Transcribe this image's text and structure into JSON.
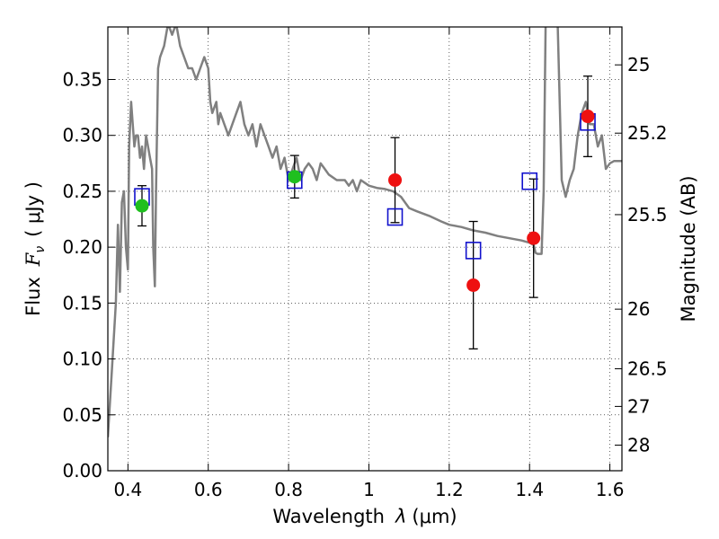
{
  "chart_data": {
    "type": "scatter",
    "xlabel_text": "Wavelength",
    "xlabel_symbol": "λ",
    "xlabel_unit": "(μm)",
    "ylabel_text": "Flux",
    "ylabel_symbol": "F",
    "ylabel_symbol_sub": "ν",
    "ylabel_unit": "( μJy )",
    "y2label": "Magnitude (AB)",
    "xlim": [
      0.35,
      1.63
    ],
    "ylim": [
      0.0,
      0.397
    ],
    "x_ticks": [
      0.4,
      0.6,
      0.8,
      1.0,
      1.2,
      1.4,
      1.6
    ],
    "x_tick_labels": [
      "0.4",
      "0.6",
      "0.8",
      "1",
      "1.2",
      "1.4",
      "1.6"
    ],
    "y_ticks": [
      0.0,
      0.05,
      0.1,
      0.15,
      0.2,
      0.25,
      0.3,
      0.35
    ],
    "y_tick_labels": [
      "0.00",
      "0.05",
      "0.10",
      "0.15",
      "0.20",
      "0.25",
      "0.30",
      "0.35"
    ],
    "y2_ticks": [
      {
        "mag": 25,
        "label": "25"
      },
      {
        "mag": 25.2,
        "label": "25.2"
      },
      {
        "mag": 25.5,
        "label": "25.5"
      },
      {
        "mag": 26,
        "label": "26"
      },
      {
        "mag": 26.5,
        "label": "26.5"
      },
      {
        "mag": 27,
        "label": "27"
      },
      {
        "mag": 28,
        "label": "28"
      }
    ],
    "grid": true,
    "colors": {
      "model": "#808080",
      "green": "#1fbf1f",
      "red": "#ee1111",
      "box": "#1111cc",
      "errorbar": "#000000"
    },
    "model_spectrum": [
      [
        0.35,
        0.03
      ],
      [
        0.36,
        0.09
      ],
      [
        0.37,
        0.15
      ],
      [
        0.375,
        0.22
      ],
      [
        0.38,
        0.16
      ],
      [
        0.385,
        0.24
      ],
      [
        0.39,
        0.25
      ],
      [
        0.395,
        0.2
      ],
      [
        0.4,
        0.18
      ],
      [
        0.403,
        0.29
      ],
      [
        0.408,
        0.33
      ],
      [
        0.412,
        0.31
      ],
      [
        0.416,
        0.29
      ],
      [
        0.42,
        0.3
      ],
      [
        0.425,
        0.3
      ],
      [
        0.43,
        0.28
      ],
      [
        0.435,
        0.29
      ],
      [
        0.44,
        0.27
      ],
      [
        0.445,
        0.3
      ],
      [
        0.45,
        0.29
      ],
      [
        0.455,
        0.28
      ],
      [
        0.46,
        0.27
      ],
      [
        0.463,
        0.2
      ],
      [
        0.467,
        0.165
      ],
      [
        0.47,
        0.25
      ],
      [
        0.475,
        0.36
      ],
      [
        0.48,
        0.37
      ],
      [
        0.49,
        0.38
      ],
      [
        0.5,
        0.4
      ],
      [
        0.51,
        0.39
      ],
      [
        0.52,
        0.4
      ],
      [
        0.53,
        0.38
      ],
      [
        0.54,
        0.37
      ],
      [
        0.55,
        0.36
      ],
      [
        0.56,
        0.36
      ],
      [
        0.57,
        0.35
      ],
      [
        0.58,
        0.36
      ],
      [
        0.59,
        0.37
      ],
      [
        0.6,
        0.36
      ],
      [
        0.605,
        0.33
      ],
      [
        0.61,
        0.32
      ],
      [
        0.62,
        0.33
      ],
      [
        0.625,
        0.31
      ],
      [
        0.63,
        0.32
      ],
      [
        0.64,
        0.31
      ],
      [
        0.65,
        0.3
      ],
      [
        0.66,
        0.31
      ],
      [
        0.67,
        0.32
      ],
      [
        0.68,
        0.33
      ],
      [
        0.69,
        0.31
      ],
      [
        0.7,
        0.3
      ],
      [
        0.71,
        0.31
      ],
      [
        0.72,
        0.29
      ],
      [
        0.73,
        0.31
      ],
      [
        0.74,
        0.3
      ],
      [
        0.75,
        0.29
      ],
      [
        0.76,
        0.28
      ],
      [
        0.77,
        0.29
      ],
      [
        0.78,
        0.27
      ],
      [
        0.79,
        0.28
      ],
      [
        0.8,
        0.26
      ],
      [
        0.81,
        0.27
      ],
      [
        0.82,
        0.28
      ],
      [
        0.83,
        0.26
      ],
      [
        0.84,
        0.27
      ],
      [
        0.85,
        0.275
      ],
      [
        0.86,
        0.27
      ],
      [
        0.87,
        0.26
      ],
      [
        0.88,
        0.275
      ],
      [
        0.89,
        0.27
      ],
      [
        0.9,
        0.265
      ],
      [
        0.92,
        0.26
      ],
      [
        0.94,
        0.26
      ],
      [
        0.95,
        0.255
      ],
      [
        0.96,
        0.26
      ],
      [
        0.97,
        0.25
      ],
      [
        0.98,
        0.26
      ],
      [
        1.0,
        0.255
      ],
      [
        1.02,
        0.253
      ],
      [
        1.04,
        0.252
      ],
      [
        1.06,
        0.25
      ],
      [
        1.08,
        0.245
      ],
      [
        1.1,
        0.235
      ],
      [
        1.12,
        0.232
      ],
      [
        1.15,
        0.228
      ],
      [
        1.18,
        0.223
      ],
      [
        1.2,
        0.22
      ],
      [
        1.23,
        0.218
      ],
      [
        1.26,
        0.215
      ],
      [
        1.29,
        0.213
      ],
      [
        1.32,
        0.21
      ],
      [
        1.35,
        0.208
      ],
      [
        1.38,
        0.206
      ],
      [
        1.4,
        0.204
      ],
      [
        1.41,
        0.202
      ],
      [
        1.415,
        0.195
      ],
      [
        1.42,
        0.194
      ],
      [
        1.43,
        0.194
      ],
      [
        1.435,
        0.25
      ],
      [
        1.44,
        0.4
      ],
      [
        1.45,
        0.4
      ],
      [
        1.46,
        0.4
      ],
      [
        1.47,
        0.4
      ],
      [
        1.48,
        0.26
      ],
      [
        1.49,
        0.245
      ],
      [
        1.5,
        0.26
      ],
      [
        1.51,
        0.27
      ],
      [
        1.52,
        0.3
      ],
      [
        1.53,
        0.32
      ],
      [
        1.54,
        0.33
      ],
      [
        1.55,
        0.31
      ],
      [
        1.56,
        0.31
      ],
      [
        1.57,
        0.29
      ],
      [
        1.58,
        0.3
      ],
      [
        1.59,
        0.27
      ],
      [
        1.6,
        0.275
      ],
      [
        1.61,
        0.277
      ],
      [
        1.63,
        0.277
      ]
    ],
    "green_points": [
      {
        "x": 0.435,
        "y": 0.237,
        "err": 0.018
      },
      {
        "x": 0.815,
        "y": 0.263,
        "err": 0.019
      }
    ],
    "red_points": [
      {
        "x": 1.065,
        "y": 0.26,
        "err": 0.038
      },
      {
        "x": 1.26,
        "y": 0.166,
        "err": 0.057
      },
      {
        "x": 1.41,
        "y": 0.208,
        "err": 0.053
      },
      {
        "x": 1.545,
        "y": 0.317,
        "err": 0.036
      }
    ],
    "box_points": [
      {
        "x": 0.435,
        "y": 0.245
      },
      {
        "x": 0.815,
        "y": 0.26
      },
      {
        "x": 1.065,
        "y": 0.227
      },
      {
        "x": 1.26,
        "y": 0.197
      },
      {
        "x": 1.4,
        "y": 0.259
      },
      {
        "x": 1.545,
        "y": 0.312
      }
    ]
  }
}
